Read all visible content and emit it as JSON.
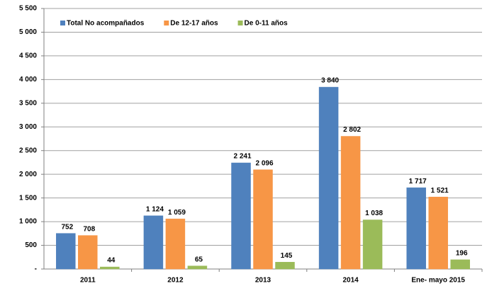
{
  "chart_data": {
    "type": "bar",
    "categories": [
      "2011",
      "2012",
      "2013",
      "2014",
      "Ene- mayo 2015"
    ],
    "series": [
      {
        "name": "Total No acompañados",
        "color": "#4f81bd",
        "values": [
          752,
          1124,
          2241,
          3840,
          1717
        ],
        "value_labels": [
          "752",
          "1 124",
          "2 241",
          "3 840",
          "1 717"
        ]
      },
      {
        "name": "De 12-17 años",
        "color": "#f79646",
        "values": [
          708,
          1059,
          2096,
          2802,
          1521
        ],
        "value_labels": [
          "708",
          "1 059",
          "2 096",
          "2 802",
          "1 521"
        ]
      },
      {
        "name": "De 0-11 años",
        "color": "#9bbb59",
        "values": [
          44,
          65,
          145,
          1038,
          196
        ],
        "value_labels": [
          "44",
          "65",
          "145",
          "1 038",
          "196"
        ]
      }
    ],
    "ylim": [
      0,
      5500
    ],
    "yticks": [
      {
        "value": 0,
        "label": "-"
      },
      500,
      {
        "value": 1000,
        "label": "1 000"
      },
      {
        "value": 1500,
        "label": "1 500"
      },
      {
        "value": 2000,
        "label": "2 000"
      },
      {
        "value": 2500,
        "label": "2 500"
      },
      {
        "value": 3000,
        "label": "3 000"
      },
      {
        "value": 3500,
        "label": "3 500"
      },
      {
        "value": 4000,
        "label": "4 000"
      },
      {
        "value": 4500,
        "label": "4 500"
      },
      {
        "value": 5000,
        "label": "5 000"
      },
      {
        "value": 5500,
        "label": "5 500"
      }
    ],
    "grid": true,
    "legend": "top"
  }
}
